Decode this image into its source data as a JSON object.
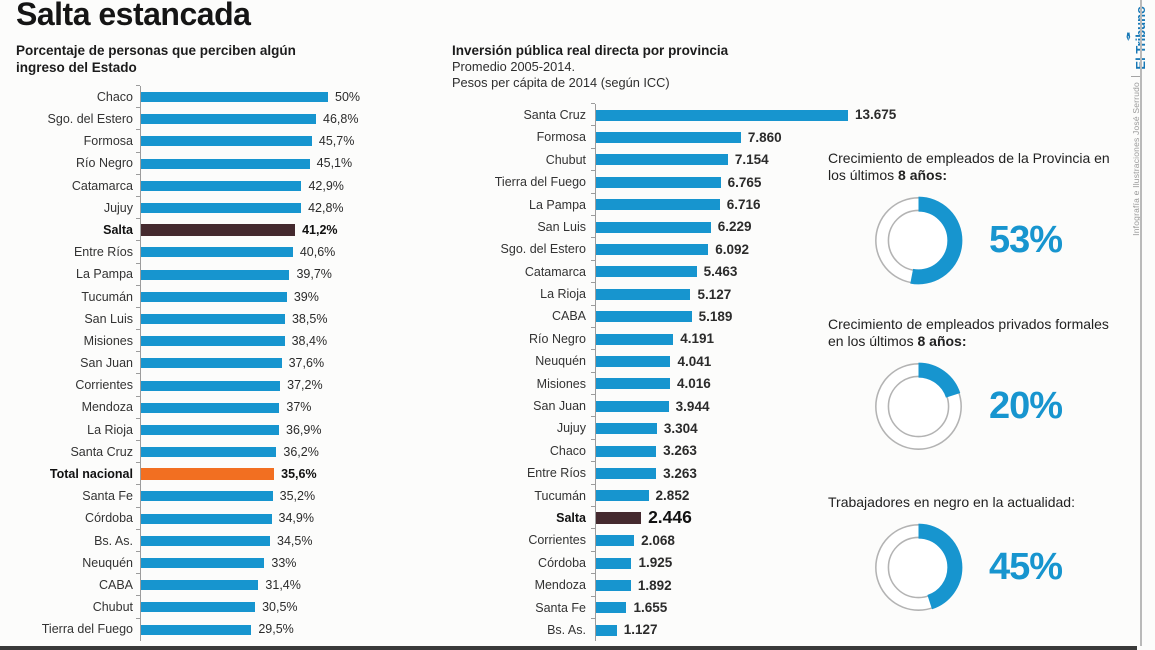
{
  "title": "Salta estancada",
  "colors": {
    "bar_blue": "#1795cf",
    "bar_dark": "#44292e",
    "bar_orange": "#f26f21",
    "brand_blue": "#1778b6",
    "axis_gray": "#9c9c9c"
  },
  "chart_data": [
    {
      "type": "bar",
      "orientation": "horizontal",
      "title": "Porcentaje de personas que perciben algún ingreso del Estado",
      "xlabel": "",
      "ylabel": "",
      "unit": "%",
      "xlim": [
        0,
        50
      ],
      "grid": false,
      "categories": [
        "Chaco",
        "Sgo. del Estero",
        "Formosa",
        "Río Negro",
        "Catamarca",
        "Jujuy",
        "Salta",
        "Entre Ríos",
        "La Pampa",
        "Tucumán",
        "San Luis",
        "Misiones",
        "San Juan",
        "Corrientes",
        "Mendoza",
        "La Rioja",
        "Santa Cruz",
        "Total nacional",
        "Santa Fe",
        "Córdoba",
        "Bs. As.",
        "Neuquén",
        "CABA",
        "Chubut",
        "Tierra del Fuego"
      ],
      "values": [
        50,
        46.8,
        45.7,
        45.1,
        42.9,
        42.8,
        41.2,
        40.6,
        39.7,
        39,
        38.5,
        38.4,
        37.6,
        37.2,
        37,
        36.9,
        36.2,
        35.6,
        35.2,
        34.9,
        34.5,
        33,
        31.4,
        30.5,
        29.5
      ],
      "value_labels": [
        "50%",
        "46,8%",
        "45,7%",
        "45,1%",
        "42,9%",
        "42,8%",
        "41,2%",
        "40,6%",
        "39,7%",
        "39%",
        "38,5%",
        "38,4%",
        "37,6%",
        "37,2%",
        "37%",
        "36,9%",
        "36,2%",
        "35,6%",
        "35,2%",
        "34,9%",
        "34,5%",
        "33%",
        "31,4%",
        "30,5%",
        "29,5%"
      ],
      "styles": [
        "normal",
        "normal",
        "normal",
        "normal",
        "normal",
        "normal",
        "dark",
        "normal",
        "normal",
        "normal",
        "normal",
        "normal",
        "normal",
        "normal",
        "normal",
        "normal",
        "normal",
        "orange",
        "normal",
        "normal",
        "normal",
        "normal",
        "normal",
        "normal",
        "normal"
      ]
    },
    {
      "type": "bar",
      "orientation": "horizontal",
      "title": "Inversión pública real directa por provincia",
      "subtitle1": "Promedio 2005-2014.",
      "subtitle2": "Pesos per cápita de 2014 (según ICC)",
      "xlabel": "",
      "ylabel": "",
      "unit": "pesos per cápita",
      "xlim": [
        0,
        13675
      ],
      "grid": false,
      "categories": [
        "Santa Cruz",
        "Formosa",
        "Chubut",
        "Tierra del Fuego",
        "La Pampa",
        "San Luis",
        "Sgo. del Estero",
        "Catamarca",
        "La Rioja",
        "CABA",
        "Río Negro",
        "Neuquén",
        "Misiones",
        "San Juan",
        "Jujuy",
        "Chaco",
        "Entre Ríos",
        "Tucumán",
        "Salta",
        "Corrientes",
        "Córdoba",
        "Mendoza",
        "Santa Fe",
        "Bs. As."
      ],
      "values": [
        13675,
        7860,
        7154,
        6765,
        6716,
        6229,
        6092,
        5463,
        5127,
        5189,
        4191,
        4041,
        4016,
        3944,
        3304,
        3263,
        3263,
        2852,
        2446,
        2068,
        1925,
        1892,
        1655,
        1127
      ],
      "value_labels": [
        "13.675",
        "7.860",
        "7.154",
        "6.765",
        "6.716",
        "6.229",
        "6.092",
        "5.463",
        "5.127",
        "5.189",
        "4.191",
        "4.041",
        "4.016",
        "3.944",
        "3.304",
        "3.263",
        "3.263",
        "2.852",
        "2.446",
        "2.068",
        "1.925",
        "1.892",
        "1.655",
        "1.127"
      ],
      "styles": [
        "normal",
        "normal",
        "normal",
        "normal",
        "normal",
        "normal",
        "normal",
        "normal",
        "normal",
        "normal",
        "normal",
        "normal",
        "normal",
        "normal",
        "normal",
        "normal",
        "normal",
        "normal",
        "dark",
        "normal",
        "normal",
        "normal",
        "normal",
        "normal"
      ]
    },
    {
      "type": "donut",
      "label": "Crecimiento de empleados de la Provincia en los últimos",
      "label_bold": "8 años:",
      "value": 53,
      "display": "53%"
    },
    {
      "type": "donut",
      "label": "Crecimiento de empleados privados formales en los últimos",
      "label_bold": "8 años:",
      "value": 20,
      "display": "20%"
    },
    {
      "type": "donut",
      "label": "Trabajadores en negro en la actualidad:",
      "label_bold": "",
      "value": 45,
      "display": "45%"
    }
  ],
  "sidebar": {
    "brand": "El Tribuno",
    "separator": "|",
    "credit": "Infografía e Ilustraciones José Serrudo"
  }
}
